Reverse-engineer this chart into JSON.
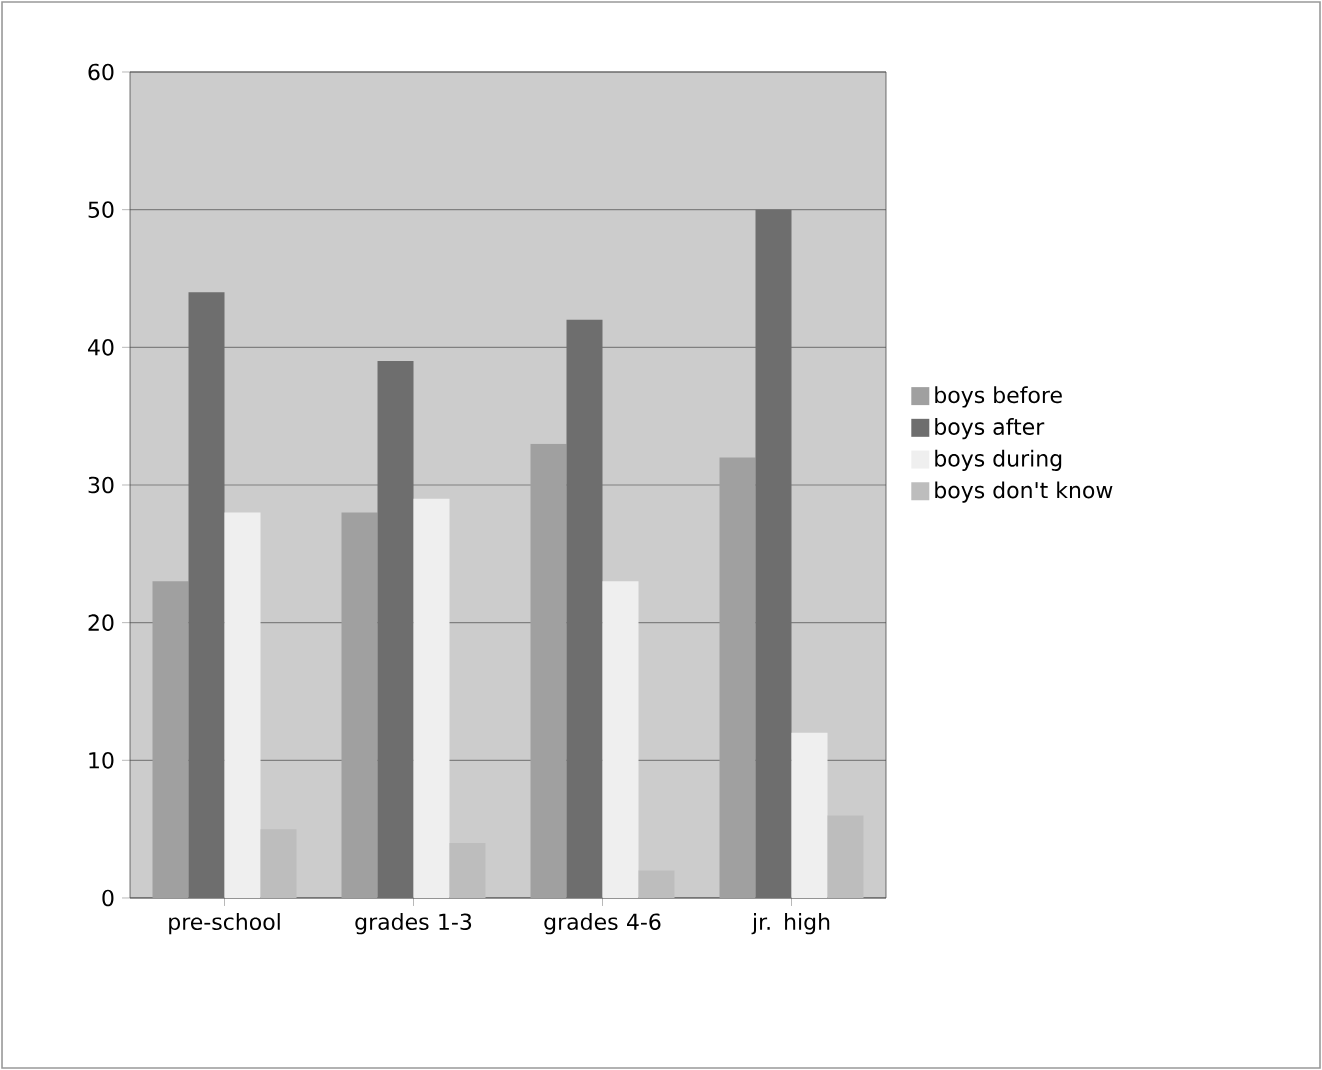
{
  "chart_data": {
    "type": "bar",
    "categories": [
      "pre-school",
      "grades 1-3",
      "grades 4-6",
      "jr. high"
    ],
    "series": [
      {
        "name": "boys before",
        "color": "#a0a0a0",
        "values": [
          23,
          28,
          33,
          32
        ]
      },
      {
        "name": "boys after",
        "color": "#6e6e6e",
        "values": [
          44,
          39,
          42,
          50
        ]
      },
      {
        "name": "boys during",
        "color": "#efefef",
        "values": [
          28,
          29,
          23,
          12
        ]
      },
      {
        "name": "boys don't know",
        "color": "#bdbdbd",
        "values": [
          5,
          4,
          2,
          6
        ]
      }
    ],
    "ylim": [
      0,
      60
    ],
    "yticks": [
      0,
      10,
      20,
      30,
      40,
      50,
      60
    ],
    "grid": "y",
    "legend": "right"
  }
}
